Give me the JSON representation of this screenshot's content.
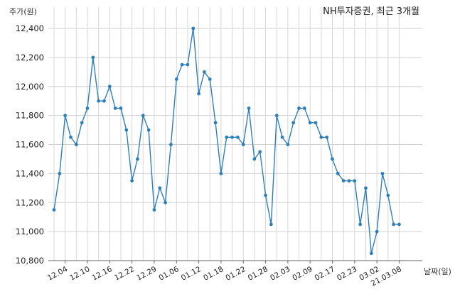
{
  "chart_data": {
    "type": "line",
    "title": "NH투자증권, 최근 3개월",
    "ylabel": "주가(원)",
    "xlabel": "날짜(일)",
    "ylim": [
      10800,
      12500
    ],
    "yticks": [
      10800,
      11000,
      11200,
      11400,
      11600,
      11800,
      12000,
      12200,
      12400
    ],
    "ytick_labels": [
      "10,800",
      "11,000",
      "11,200",
      "11,400",
      "11,600",
      "11,800",
      "12,000",
      "12,200",
      "12,400"
    ],
    "xtick_labels": [
      "12.04",
      "12.10",
      "12.16",
      "12.22",
      "12.29",
      "01.06",
      "01.12",
      "01.18",
      "01.22",
      "01.28",
      "02.03",
      "02.09",
      "02.17",
      "02.23",
      "03.02",
      "21.03.08"
    ],
    "xtick_positions": [
      2,
      6,
      10,
      14,
      18,
      22,
      26,
      30,
      34,
      38,
      42,
      46,
      50,
      54,
      58,
      62
    ],
    "grid": true,
    "color": "#2e7fb8",
    "series": [
      {
        "values": [
          11150,
          11400,
          11800,
          11650,
          11600,
          11750,
          11850,
          12200,
          11900,
          11900,
          12000,
          11850,
          11850,
          11700,
          11350,
          11500,
          11800,
          11700,
          11150,
          11300,
          11200,
          11600,
          12050,
          12150,
          12150,
          12400,
          11950,
          12100,
          12050,
          11750,
          11400,
          11650,
          11650,
          11650,
          11600,
          11850,
          11500,
          11550,
          11250,
          11050,
          11800,
          11650,
          11600,
          11750,
          11850,
          11850,
          11750,
          11750,
          11650,
          11650,
          11500,
          11400,
          11350,
          11350,
          11350,
          11050,
          11300,
          10850,
          11000,
          11400,
          11250,
          11050,
          11050
        ]
      }
    ]
  }
}
